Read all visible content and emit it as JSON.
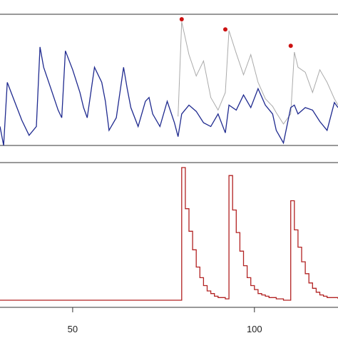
{
  "colors": {
    "frame": "#333333",
    "observed": "#aaaaaa",
    "fitted": "#1f2a8f",
    "peaks": "#cc1111",
    "step": "#b22222"
  },
  "chart_data": [
    {
      "type": "line",
      "title": "",
      "xlabel": "",
      "ylabel": "",
      "x_range": [
        30,
        123
      ],
      "ylim": [
        0,
        1
      ],
      "series": [
        {
          "role": "observed",
          "x": [
            79,
            80,
            82,
            84,
            86,
            88,
            90,
            92,
            93,
            95,
            97,
            99,
            101,
            103,
            105,
            106,
            108,
            110,
            111,
            112,
            114,
            116,
            118,
            120,
            122,
            123
          ],
          "y": [
            0.23,
            0.98,
            0.72,
            0.55,
            0.67,
            0.38,
            0.28,
            0.42,
            0.91,
            0.73,
            0.56,
            0.72,
            0.5,
            0.37,
            0.31,
            0.26,
            0.17,
            0.25,
            0.74,
            0.62,
            0.58,
            0.42,
            0.6,
            0.5,
            0.37,
            0.32
          ]
        },
        {
          "role": "fitted",
          "x": [
            30,
            31,
            32,
            34,
            36,
            38,
            40,
            41,
            42,
            44,
            46,
            47,
            48,
            50,
            52,
            53,
            54,
            56,
            58,
            59,
            60,
            62,
            64,
            65,
            66,
            68,
            70,
            71,
            72,
            74,
            76,
            78,
            79,
            80,
            82,
            84,
            86,
            88,
            90,
            92,
            93,
            95,
            97,
            99,
            101,
            103,
            105,
            106,
            108,
            110,
            111,
            112,
            114,
            116,
            118,
            120,
            122,
            123
          ],
          "y": [
            0.15,
            0.0,
            0.5,
            0.35,
            0.2,
            0.08,
            0.15,
            0.78,
            0.62,
            0.45,
            0.28,
            0.22,
            0.75,
            0.6,
            0.42,
            0.3,
            0.22,
            0.62,
            0.5,
            0.35,
            0.12,
            0.22,
            0.62,
            0.45,
            0.3,
            0.15,
            0.35,
            0.38,
            0.25,
            0.15,
            0.35,
            0.18,
            0.07,
            0.25,
            0.32,
            0.27,
            0.18,
            0.15,
            0.25,
            0.1,
            0.32,
            0.28,
            0.4,
            0.3,
            0.45,
            0.32,
            0.25,
            0.12,
            0.02,
            0.3,
            0.32,
            0.25,
            0.3,
            0.28,
            0.19,
            0.12,
            0.34,
            0.3
          ]
        }
      ],
      "peaks": {
        "x": [
          80,
          92,
          110
        ],
        "y": [
          1.0,
          0.92,
          0.79
        ]
      }
    },
    {
      "type": "line",
      "title": "",
      "xlabel": "",
      "ylabel": "",
      "x_range": [
        30,
        123
      ],
      "ylim": [
        0,
        1
      ],
      "x_ticks": [
        50,
        100
      ],
      "x_tick_labels": [
        "50",
        "100"
      ],
      "series": [
        {
          "role": "step",
          "x": [
            30,
            79,
            80,
            81,
            82,
            83,
            84,
            85,
            86,
            87,
            88,
            89,
            90,
            91,
            92,
            93,
            94,
            95,
            96,
            97,
            98,
            99,
            100,
            101,
            102,
            103,
            104,
            105,
            106,
            108,
            109,
            110,
            111,
            112,
            113,
            114,
            115,
            116,
            117,
            118,
            119,
            120,
            121,
            123
          ],
          "y": [
            0.0,
            0.0,
            1.0,
            0.69,
            0.52,
            0.38,
            0.25,
            0.17,
            0.11,
            0.07,
            0.05,
            0.03,
            0.02,
            0.02,
            0.01,
            0.94,
            0.68,
            0.51,
            0.37,
            0.26,
            0.17,
            0.11,
            0.08,
            0.05,
            0.04,
            0.03,
            0.02,
            0.02,
            0.01,
            0.0,
            0.0,
            0.75,
            0.53,
            0.4,
            0.29,
            0.2,
            0.13,
            0.09,
            0.06,
            0.04,
            0.03,
            0.02,
            0.02,
            0.01
          ]
        }
      ]
    }
  ]
}
